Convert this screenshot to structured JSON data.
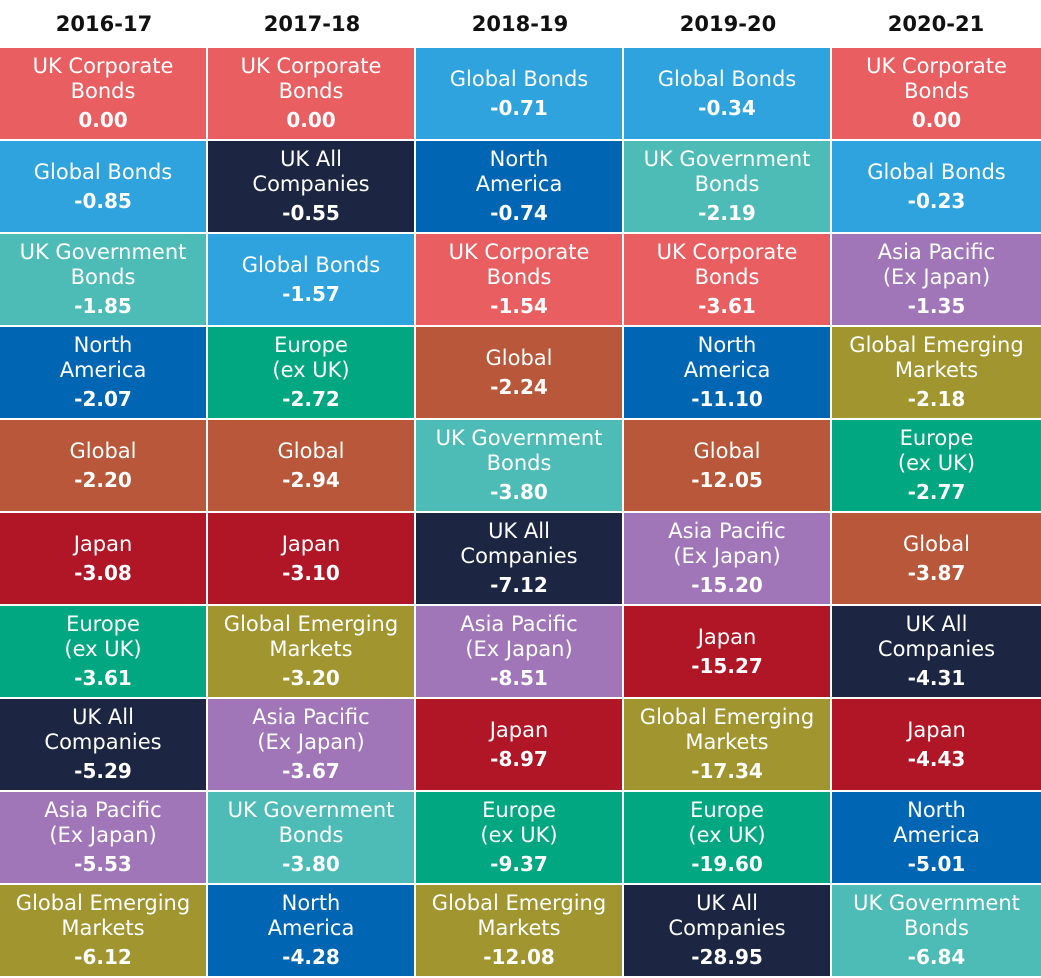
{
  "chart_data": {
    "type": "table",
    "columns": [
      "2016-17",
      "2017-18",
      "2018-19",
      "2019-20",
      "2020-21"
    ],
    "colors": {
      "UK Corporate Bonds": "#e95e61",
      "Global Bonds": "#2ea3dd",
      "UK Government Bonds": "#4dbcb6",
      "North America": "#0066b3",
      "Global": "#b85739",
      "Japan": "#b01626",
      "Europe (ex UK)": "#00a780",
      "UK All Companies": "#1c2541",
      "Asia Pacific (Ex Japan)": "#a176b8",
      "Global Emerging Markets": "#a0952f"
    },
    "ranks": [
      [
        {
          "name": "UK Corporate\nBonds",
          "key": "UK Corporate Bonds",
          "value": "0.00"
        },
        {
          "name": "Global Bonds",
          "key": "Global Bonds",
          "value": "-0.85"
        },
        {
          "name": "UK Government\nBonds",
          "key": "UK Government Bonds",
          "value": "-1.85"
        },
        {
          "name": "North\nAmerica",
          "key": "North America",
          "value": "-2.07"
        },
        {
          "name": "Global",
          "key": "Global",
          "value": "-2.20"
        },
        {
          "name": "Japan",
          "key": "Japan",
          "value": "-3.08"
        },
        {
          "name": "Europe\n(ex UK)",
          "key": "Europe (ex UK)",
          "value": "-3.61"
        },
        {
          "name": "UK All\nCompanies",
          "key": "UK All Companies",
          "value": "-5.29"
        },
        {
          "name": "Asia Pacific\n(Ex Japan)",
          "key": "Asia Pacific (Ex Japan)",
          "value": "-5.53"
        },
        {
          "name": "Global Emerging\nMarkets",
          "key": "Global Emerging Markets",
          "value": "-6.12"
        }
      ],
      [
        {
          "name": "UK Corporate\nBonds",
          "key": "UK Corporate Bonds",
          "value": "0.00"
        },
        {
          "name": "UK All\nCompanies",
          "key": "UK All Companies",
          "value": "-0.55"
        },
        {
          "name": "Global Bonds",
          "key": "Global Bonds",
          "value": "-1.57"
        },
        {
          "name": "Europe\n(ex UK)",
          "key": "Europe (ex UK)",
          "value": "-2.72"
        },
        {
          "name": "Global",
          "key": "Global",
          "value": "-2.94"
        },
        {
          "name": "Japan",
          "key": "Japan",
          "value": "-3.10"
        },
        {
          "name": "Global Emerging\nMarkets",
          "key": "Global Emerging Markets",
          "value": "-3.20"
        },
        {
          "name": "Asia Pacific\n(Ex Japan)",
          "key": "Asia Pacific (Ex Japan)",
          "value": "-3.67"
        },
        {
          "name": "UK Government\nBonds",
          "key": "UK Government Bonds",
          "value": "-3.80"
        },
        {
          "name": "North\nAmerica",
          "key": "North America",
          "value": "-4.28"
        }
      ],
      [
        {
          "name": "Global Bonds",
          "key": "Global Bonds",
          "value": "-0.71"
        },
        {
          "name": "North\nAmerica",
          "key": "North America",
          "value": "-0.74"
        },
        {
          "name": "UK Corporate\nBonds",
          "key": "UK Corporate Bonds",
          "value": "-1.54"
        },
        {
          "name": "Global",
          "key": "Global",
          "value": "-2.24"
        },
        {
          "name": "UK Government\nBonds",
          "key": "UK Government Bonds",
          "value": "-3.80"
        },
        {
          "name": "UK All\nCompanies",
          "key": "UK All Companies",
          "value": "-7.12"
        },
        {
          "name": "Asia Pacific\n(Ex Japan)",
          "key": "Asia Pacific (Ex Japan)",
          "value": "-8.51"
        },
        {
          "name": "Japan",
          "key": "Japan",
          "value": "-8.97"
        },
        {
          "name": "Europe\n(ex UK)",
          "key": "Europe (ex UK)",
          "value": "-9.37"
        },
        {
          "name": "Global Emerging\nMarkets",
          "key": "Global Emerging Markets",
          "value": "-12.08"
        }
      ],
      [
        {
          "name": "Global Bonds",
          "key": "Global Bonds",
          "value": "-0.34"
        },
        {
          "name": "UK Government\nBonds",
          "key": "UK Government Bonds",
          "value": "-2.19"
        },
        {
          "name": "UK Corporate\nBonds",
          "key": "UK Corporate Bonds",
          "value": "-3.61"
        },
        {
          "name": "North\nAmerica",
          "key": "North America",
          "value": "-11.10"
        },
        {
          "name": "Global",
          "key": "Global",
          "value": "-12.05"
        },
        {
          "name": "Asia Pacific\n(Ex Japan)",
          "key": "Asia Pacific (Ex Japan)",
          "value": "-15.20"
        },
        {
          "name": "Japan",
          "key": "Japan",
          "value": "-15.27"
        },
        {
          "name": "Global Emerging\nMarkets",
          "key": "Global Emerging Markets",
          "value": "-17.34"
        },
        {
          "name": "Europe\n(ex UK)",
          "key": "Europe (ex UK)",
          "value": "-19.60"
        },
        {
          "name": "UK All\nCompanies",
          "key": "UK All Companies",
          "value": "-28.95"
        }
      ],
      [
        {
          "name": "UK Corporate\nBonds",
          "key": "UK Corporate Bonds",
          "value": "0.00"
        },
        {
          "name": "Global Bonds",
          "key": "Global Bonds",
          "value": "-0.23"
        },
        {
          "name": "Asia Pacific\n(Ex Japan)",
          "key": "Asia Pacific (Ex Japan)",
          "value": "-1.35"
        },
        {
          "name": "Global Emerging\nMarkets",
          "key": "Global Emerging Markets",
          "value": "-2.18"
        },
        {
          "name": "Europe\n(ex UK)",
          "key": "Europe (ex UK)",
          "value": "-2.77"
        },
        {
          "name": "Global",
          "key": "Global",
          "value": "-3.87"
        },
        {
          "name": "UK All\nCompanies",
          "key": "UK All Companies",
          "value": "-4.31"
        },
        {
          "name": "Japan",
          "key": "Japan",
          "value": "-4.43"
        },
        {
          "name": "North\nAmerica",
          "key": "North America",
          "value": "-5.01"
        },
        {
          "name": "UK Government\nBonds",
          "key": "UK Government Bonds",
          "value": "-6.84"
        }
      ]
    ]
  }
}
